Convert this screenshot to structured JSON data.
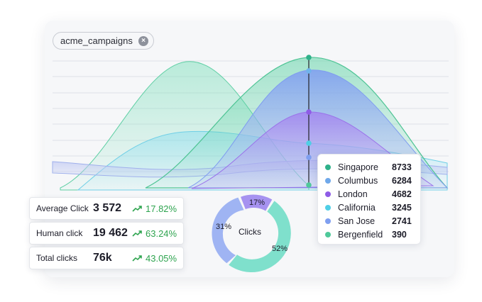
{
  "filter_chip": {
    "label": "acme_campaigns",
    "close_icon": "close-icon"
  },
  "tooltip": {
    "rows": [
      {
        "name": "Singapore",
        "value": "8733",
        "color": "#2fb18a"
      },
      {
        "name": "Columbus",
        "value": "6284",
        "color": "#6fa8ea"
      },
      {
        "name": "London",
        "value": "4682",
        "color": "#8e5ce6"
      },
      {
        "name": "California",
        "value": "3245",
        "color": "#4fcfe6"
      },
      {
        "name": "San Jose",
        "value": "2741",
        "color": "#7f9ff0"
      },
      {
        "name": "Bergenfield",
        "value": "390",
        "color": "#4fc99a"
      }
    ]
  },
  "stats": [
    {
      "label": "Average Click",
      "value": "3 572",
      "trend": "17.82%",
      "trend_icon": "trending-up-icon"
    },
    {
      "label": "Human click",
      "value": "19 462",
      "trend": "63.24%",
      "trend_icon": "trending-up-icon"
    },
    {
      "label": "Total clicks",
      "value": "76k",
      "trend": "43.05%",
      "trend_icon": "trending-up-icon"
    }
  ],
  "donut": {
    "center_label": "Clicks",
    "segments": [
      {
        "label": "17%",
        "value": 17,
        "color": "#a692f0"
      },
      {
        "label": "52%",
        "value": 52,
        "color": "#7fe0cc"
      },
      {
        "label": "31%",
        "value": 31,
        "color": "#9fb4f3"
      }
    ]
  },
  "colors": {
    "positive": "#2ea44f",
    "card_bg": "#f6f7f9"
  }
}
